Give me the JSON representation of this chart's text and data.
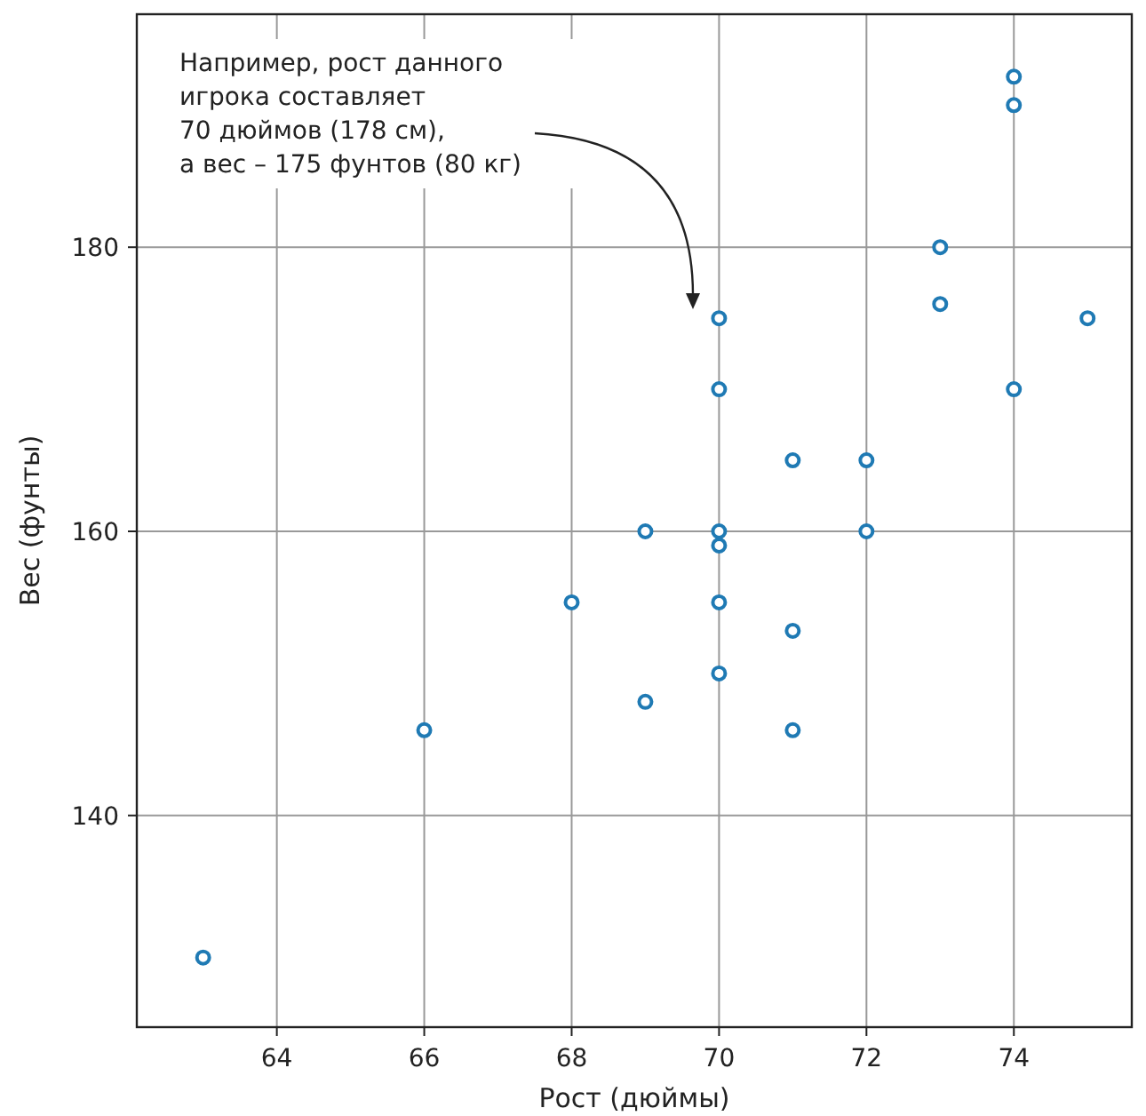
{
  "chart_data": {
    "type": "scatter",
    "xlabel": "Рост (дюймы)",
    "ylabel": "Вес (фунты)",
    "x": [
      63,
      66,
      68,
      69,
      69,
      70,
      70,
      70,
      70,
      70,
      70,
      71,
      71,
      71,
      72,
      72,
      73,
      73,
      74,
      74,
      74,
      75
    ],
    "values": [
      130,
      146,
      155,
      160,
      148,
      175,
      170,
      160,
      159,
      155,
      150,
      165,
      153,
      146,
      165,
      160,
      180,
      176,
      192,
      190,
      170,
      175
    ],
    "color": "#1f7ab4",
    "marker": "circle",
    "grid": true,
    "xlim": [
      62.1,
      75.6
    ],
    "ylim": [
      125.1,
      196.4
    ],
    "xticks": [
      64,
      66,
      68,
      70,
      72,
      74
    ],
    "yticks": [
      140,
      160,
      180
    ],
    "annotations": [
      "Например, рост данного\nигрока составляет\n70 дюймов (178 см),\nа вес – 175 фунтов (80 кг)"
    ]
  }
}
